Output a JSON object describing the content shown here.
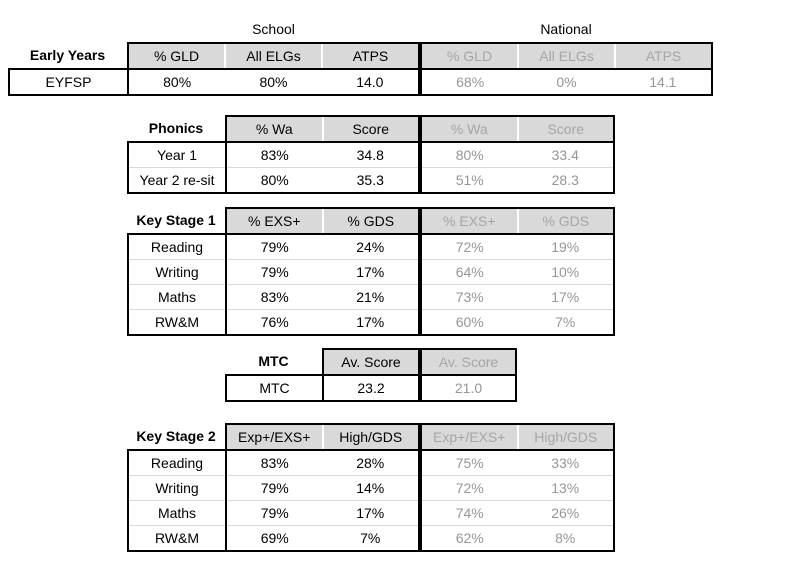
{
  "group_headers": {
    "school": "School",
    "national": "National"
  },
  "colors": {
    "header_bg": "#d9d9d9",
    "border_strong": "#000000",
    "row_divider": "#d9d9d9",
    "national_header_text": "#a6a6a6",
    "national_value_text": "#969696",
    "school_text": "#000000"
  },
  "tables": [
    {
      "id": "early-years",
      "label": "Early Years",
      "school_cols": [
        "% GLD",
        "All ELGs",
        "ATPS"
      ],
      "national_cols": [
        "% GLD",
        "All ELGs",
        "ATPS"
      ],
      "rows": [
        {
          "label": "EYFSP",
          "school": [
            "80%",
            "80%",
            "14.0"
          ],
          "national": [
            "68%",
            "0%",
            "14.1"
          ]
        }
      ]
    },
    {
      "id": "phonics",
      "label": "Phonics",
      "school_cols": [
        "% Wa",
        "Score"
      ],
      "national_cols": [
        "% Wa",
        "Score"
      ],
      "rows": [
        {
          "label": "Year 1",
          "school": [
            "83%",
            "34.8"
          ],
          "national": [
            "80%",
            "33.4"
          ]
        },
        {
          "label": "Year 2 re-sit",
          "school": [
            "80%",
            "35.3"
          ],
          "national": [
            "51%",
            "28.3"
          ]
        }
      ]
    },
    {
      "id": "key-stage-1",
      "label": "Key Stage 1",
      "school_cols": [
        "% EXS+",
        "% GDS"
      ],
      "national_cols": [
        "% EXS+",
        "% GDS"
      ],
      "rows": [
        {
          "label": "Reading",
          "school": [
            "79%",
            "24%"
          ],
          "national": [
            "72%",
            "19%"
          ]
        },
        {
          "label": "Writing",
          "school": [
            "79%",
            "17%"
          ],
          "national": [
            "64%",
            "10%"
          ]
        },
        {
          "label": "Maths",
          "school": [
            "83%",
            "21%"
          ],
          "national": [
            "73%",
            "17%"
          ]
        },
        {
          "label": "RW&M",
          "school": [
            "76%",
            "17%"
          ],
          "national": [
            "60%",
            "7%"
          ]
        }
      ]
    },
    {
      "id": "mtc",
      "label": "MTC",
      "school_cols": [
        "Av. Score"
      ],
      "national_cols": [
        "Av. Score"
      ],
      "rows": [
        {
          "label": "MTC",
          "school": [
            "23.2"
          ],
          "national": [
            "21.0"
          ]
        }
      ]
    },
    {
      "id": "key-stage-2",
      "label": "Key Stage 2",
      "school_cols": [
        "Exp+/EXS+",
        "High/GDS"
      ],
      "national_cols": [
        "Exp+/EXS+",
        "High/GDS"
      ],
      "rows": [
        {
          "label": "Reading",
          "school": [
            "83%",
            "28%"
          ],
          "national": [
            "75%",
            "33%"
          ]
        },
        {
          "label": "Writing",
          "school": [
            "79%",
            "14%"
          ],
          "national": [
            "72%",
            "13%"
          ]
        },
        {
          "label": "Maths",
          "school": [
            "79%",
            "17%"
          ],
          "national": [
            "74%",
            "26%"
          ]
        },
        {
          "label": "RW&M",
          "school": [
            "69%",
            "7%"
          ],
          "national": [
            "62%",
            "8%"
          ]
        }
      ]
    }
  ]
}
